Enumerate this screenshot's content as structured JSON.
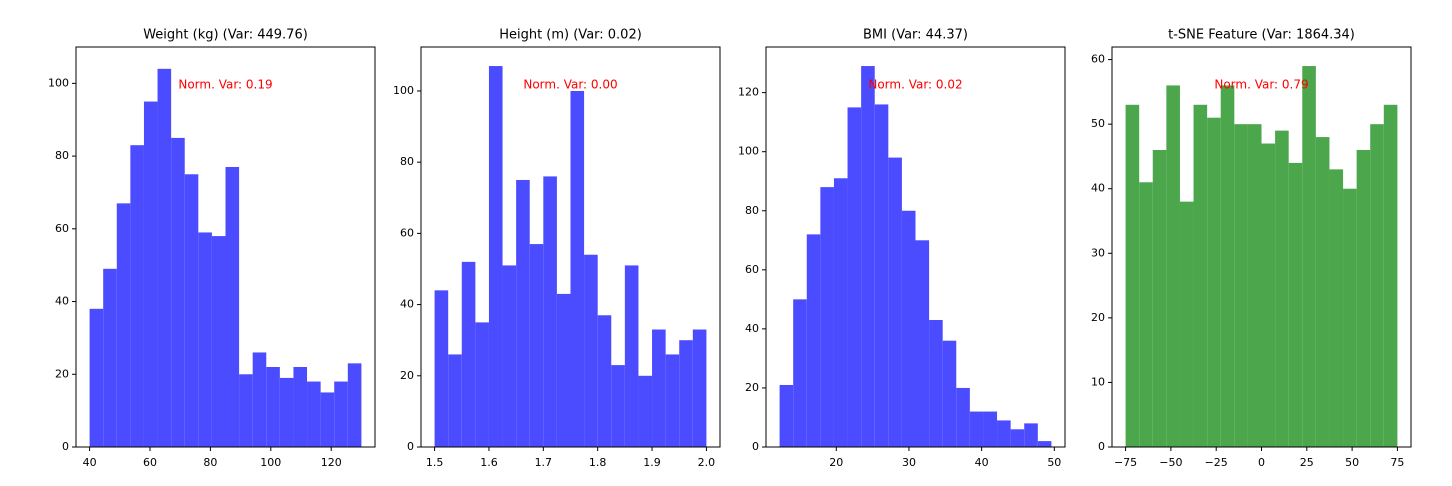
{
  "chart_data": [
    {
      "type": "histogram",
      "title": "Weight (kg) (Var: 449.76)",
      "annotation": "Norm. Var: 0.19",
      "color": "#4b4bff",
      "bins": [
        40,
        44.5,
        49,
        53.5,
        58,
        62.5,
        67,
        71.5,
        76,
        80.5,
        85,
        89.5,
        94,
        98.5,
        103,
        107.5,
        112,
        116.5,
        121,
        125.5,
        130
      ],
      "values": [
        38,
        49,
        67,
        83,
        95,
        104,
        85,
        75,
        59,
        58,
        77,
        20,
        26,
        22,
        19,
        22,
        18,
        15,
        18,
        23
      ],
      "xlim": [
        35.5,
        134.5
      ],
      "xticks": [
        40,
        60,
        80,
        100,
        120
      ],
      "ylim": [
        0,
        110
      ],
      "yticks": [
        0,
        20,
        40,
        60,
        80,
        100
      ]
    },
    {
      "type": "histogram",
      "title": "Height (m) (Var: 0.02)",
      "annotation": "Norm. Var: 0.00",
      "color": "#4b4bff",
      "bins": [
        1.5,
        1.525,
        1.55,
        1.575,
        1.6,
        1.625,
        1.65,
        1.675,
        1.7,
        1.725,
        1.75,
        1.775,
        1.8,
        1.825,
        1.85,
        1.875,
        1.9,
        1.925,
        1.95,
        1.975,
        2.0
      ],
      "values": [
        44,
        26,
        52,
        35,
        107,
        51,
        75,
        57,
        76,
        43,
        100,
        54,
        37,
        23,
        51,
        20,
        33,
        26,
        30,
        33
      ],
      "xlim": [
        1.475,
        2.025
      ],
      "xticks": [
        1.5,
        1.6,
        1.7,
        1.8,
        1.9,
        {
          "value": 2,
          "label": "2.0"
        }
      ],
      "ylim": [
        0,
        112.35
      ],
      "yticks": [
        0,
        20,
        40,
        60,
        80,
        100
      ]
    },
    {
      "type": "histogram",
      "title": "BMI (Var: 44.37)",
      "annotation": "Norm. Var: 0.02",
      "color": "#4b4bff",
      "bins": [
        12.2,
        14.07,
        15.94,
        17.81,
        19.68,
        21.55,
        23.42,
        25.29,
        27.16,
        29.03,
        30.9,
        32.77,
        34.64,
        36.51,
        38.38,
        40.25,
        42.12,
        43.99,
        45.86,
        47.73,
        49.6
      ],
      "values": [
        21,
        50,
        72,
        88,
        91,
        115,
        129,
        116,
        98,
        80,
        70,
        43,
        36,
        20,
        12,
        12,
        9,
        6,
        8,
        2
      ],
      "xlim": [
        10.33,
        51.47
      ],
      "xticks": [
        20,
        30,
        40,
        50
      ],
      "ylim": [
        0,
        135.45
      ],
      "yticks": [
        0,
        20,
        40,
        60,
        80,
        100,
        120
      ]
    },
    {
      "type": "histogram",
      "title": "t-SNE Feature (Var: 1864.34)",
      "annotation": "Norm. Var: 0.79",
      "color": "#4ca64c",
      "bins": [
        -75,
        -67.5,
        -60,
        -52.5,
        -45,
        -37.5,
        -30,
        -22.5,
        -15,
        -7.5,
        0,
        7.5,
        15,
        22.5,
        30,
        37.5,
        45,
        52.5,
        60,
        67.5,
        75
      ],
      "values": [
        53,
        41,
        46,
        56,
        38,
        53,
        51,
        56,
        50,
        50,
        47,
        49,
        44,
        59,
        48,
        43,
        40,
        46,
        50,
        53
      ],
      "xlim": [
        -82.5,
        82.5
      ],
      "xticks": [
        {
          "value": -75,
          "label": "−75"
        },
        {
          "value": -50,
          "label": "−50"
        },
        {
          "value": -25,
          "label": "−25"
        },
        0,
        25,
        50,
        75
      ],
      "ylim": [
        0,
        61.95
      ],
      "yticks": [
        0,
        10,
        20,
        30,
        40,
        50,
        60
      ]
    }
  ]
}
